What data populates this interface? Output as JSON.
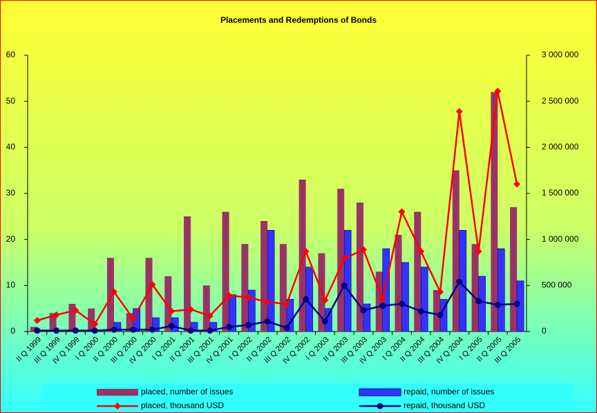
{
  "chart_data": {
    "type": "bar",
    "title": "Placements and Redemptions of Bonds",
    "categories": [
      "II Q 1999",
      "III Q 1999",
      "IV Q 1999",
      "I Q 2000",
      "II Q 2000",
      "III Q 2000",
      "IV Q 2000",
      "I Q 2001",
      "II Q 2001",
      "III Q 2001",
      "IV Q 2001",
      "I Q 2002",
      "II Q 2002",
      "III Q 2002",
      "IV Q 2002",
      "I Q 2003",
      "II Q 2003",
      "III Q 2003",
      "IV Q 2003",
      "I Q 2004",
      "II Q 2004",
      "III Q 2004",
      "IV Q 2004",
      "I Q 2005",
      "II Q 2005",
      "III Q 2005"
    ],
    "series": [
      {
        "name": "placed, number of issues",
        "type": "bar",
        "color": "#993366",
        "values": [
          1,
          4,
          6,
          5,
          16,
          4,
          16,
          12,
          25,
          10,
          26,
          19,
          24,
          19,
          33,
          17,
          31,
          28,
          13,
          21,
          26,
          9,
          35,
          19,
          52,
          27
        ]
      },
      {
        "name": "repaid, number of issues",
        "type": "bar",
        "color": "#3333ff",
        "values": [
          0,
          0,
          0,
          0,
          2,
          5,
          3,
          3,
          2,
          2,
          8,
          9,
          22,
          7,
          14,
          5,
          22,
          6,
          18,
          15,
          14,
          7,
          22,
          12,
          18,
          11
        ]
      },
      {
        "name": "placed, thousand USD",
        "type": "line",
        "marker": "diamond",
        "color": "#ff0000",
        "axis": "y2",
        "values": [
          120000,
          180000,
          230000,
          80000,
          430000,
          140000,
          510000,
          220000,
          240000,
          170000,
          390000,
          370000,
          320000,
          300000,
          870000,
          340000,
          790000,
          890000,
          350000,
          1300000,
          870000,
          430000,
          2390000,
          870000,
          2610000,
          1600000
        ]
      },
      {
        "name": "repaid, thousand USD",
        "type": "line",
        "marker": "circle",
        "color": "#000080",
        "axis": "y2",
        "values": [
          10000,
          10000,
          10000,
          10000,
          20000,
          20000,
          20000,
          60000,
          10000,
          10000,
          50000,
          70000,
          110000,
          40000,
          350000,
          110000,
          500000,
          230000,
          280000,
          300000,
          220000,
          180000,
          540000,
          330000,
          290000,
          300000
        ]
      }
    ],
    "ylim": [
      0,
      60
    ],
    "yticks": [
      0,
      10,
      20,
      30,
      40,
      50,
      60
    ],
    "y2lim": [
      0,
      3000000
    ],
    "y2ticks": [
      0,
      {
        "value": 500000,
        "label": "500 000"
      },
      {
        "value": 1000000,
        "label": "1 000 000"
      },
      {
        "value": 1500000,
        "label": "1 500 000"
      },
      {
        "value": 2000000,
        "label": "2 000 000"
      },
      {
        "value": 2500000,
        "label": "2 500 000"
      },
      {
        "value": 3000000,
        "label": "3 000 000"
      }
    ],
    "legend": "bottom"
  }
}
